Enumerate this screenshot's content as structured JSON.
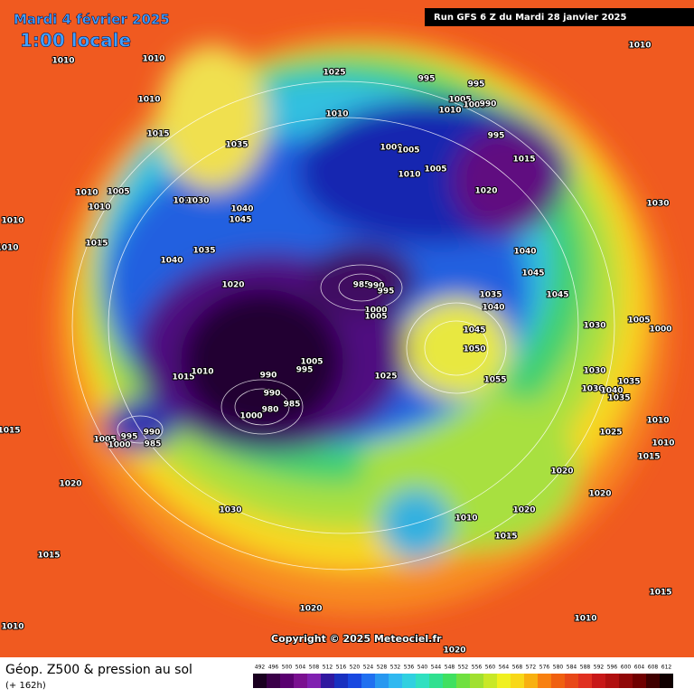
{
  "header": {
    "date": "Mardi 4 février 2025",
    "time": "1:00 locale",
    "run": "Run GFS 6 Z du Mardi 28 janvier 2025"
  },
  "map": {
    "pressure_labels": [
      1010,
      1010,
      1010,
      1015,
      1035,
      1025,
      1010,
      995,
      995,
      1005,
      1010,
      1000,
      990,
      995,
      1000,
      1005,
      1015,
      1010,
      1005,
      1020,
      1010,
      1010,
      1005,
      1010,
      1010,
      1030,
      1040,
      1045,
      1010,
      1010,
      1015,
      1035,
      1040,
      1020,
      1040,
      1045,
      1045,
      1030,
      985,
      990,
      995,
      1000,
      1005,
      1035,
      1040,
      1045,
      1050,
      1055,
      1030,
      1005,
      1000,
      1015,
      1010,
      990,
      1005,
      995,
      1025,
      990,
      985,
      980,
      1000,
      990,
      995,
      1005,
      1000,
      985,
      1015,
      1030,
      1030,
      1040,
      1035,
      1035,
      1025,
      1010,
      1010,
      1015,
      1020,
      1020,
      1020,
      1030,
      1010,
      1020,
      1015,
      1015,
      1015,
      1020,
      1010,
      1010,
      1020
    ]
  },
  "copyright": "Copyright © 2025 Meteociel.fr",
  "footer": {
    "title": "Géop. Z500 & pression au sol",
    "lead": "(+ 162h)"
  },
  "legend": {
    "ticks": [
      492,
      496,
      500,
      504,
      508,
      512,
      516,
      520,
      524,
      528,
      532,
      536,
      540,
      544,
      548,
      552,
      556,
      560,
      564,
      568,
      572,
      576,
      580,
      584,
      588,
      592,
      596,
      600,
      604,
      608,
      612
    ],
    "colors": [
      "#1a0020",
      "#3a0048",
      "#5a0070",
      "#7a1090",
      "#8020b0",
      "#3018a0",
      "#1830c0",
      "#1848e0",
      "#2070f0",
      "#2898f0",
      "#30b8f0",
      "#30d0e0",
      "#30e0c0",
      "#30e090",
      "#40e060",
      "#70e040",
      "#a0e030",
      "#c8e828",
      "#f0f020",
      "#f8d818",
      "#f8b010",
      "#f88010",
      "#f06010",
      "#e84818",
      "#e03020",
      "#c81818",
      "#b01010",
      "#900808",
      "#700000",
      "#400000",
      "#100000"
    ]
  }
}
